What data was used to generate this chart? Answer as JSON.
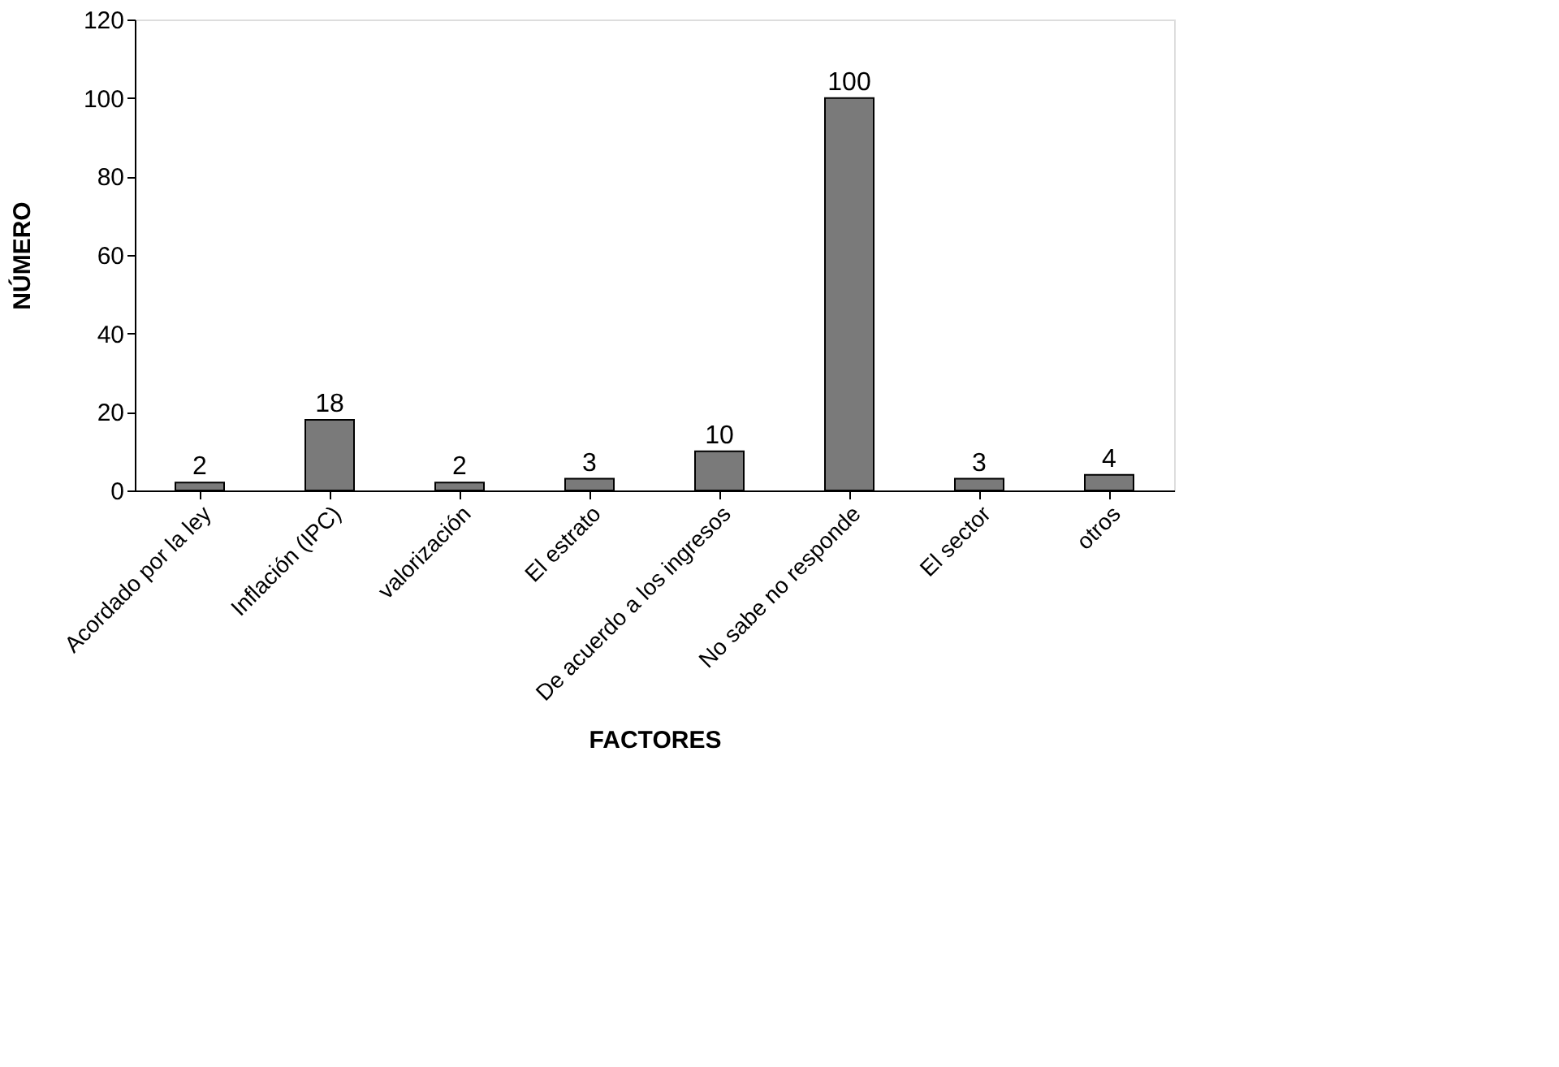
{
  "chart_data": {
    "type": "bar",
    "xlabel": "FACTORES",
    "ylabel": "NÚMERO",
    "categories": [
      "Acordado por la ley",
      "Inflación (IPC)",
      "valorización",
      "El estrato",
      "De acuerdo a los ingresos",
      "No sabe no responde",
      "El sector",
      "otros"
    ],
    "values": [
      2,
      18,
      2,
      3,
      10,
      100,
      3,
      4
    ],
    "color": "#7a7a7a",
    "ylim": [
      0,
      120
    ],
    "yticks": [
      0,
      20,
      40,
      60,
      80,
      100,
      120
    ],
    "data_labels": true,
    "grid": false
  }
}
